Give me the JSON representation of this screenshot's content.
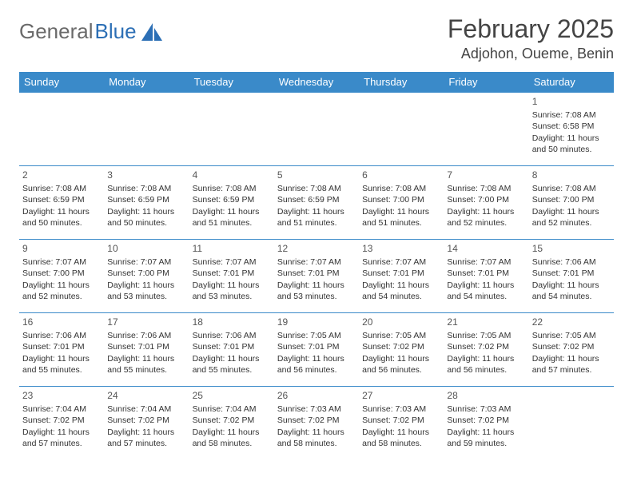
{
  "brand": {
    "name1": "General",
    "name2": "Blue"
  },
  "title": "February 2025",
  "location": "Adjohon, Oueme, Benin",
  "colors": {
    "header_bg": "#3a8ac9",
    "header_fg": "#ffffff",
    "border": "#3a8ac9",
    "brand_gray": "#6a6a6a",
    "brand_blue": "#2c6fb5",
    "text": "#333333"
  },
  "weekdays": [
    "Sunday",
    "Monday",
    "Tuesday",
    "Wednesday",
    "Thursday",
    "Friday",
    "Saturday"
  ],
  "weeks": [
    [
      null,
      null,
      null,
      null,
      null,
      null,
      {
        "d": "1",
        "sr": "7:08 AM",
        "ss": "6:58 PM",
        "dl": "11 hours and 50 minutes."
      }
    ],
    [
      {
        "d": "2",
        "sr": "7:08 AM",
        "ss": "6:59 PM",
        "dl": "11 hours and 50 minutes."
      },
      {
        "d": "3",
        "sr": "7:08 AM",
        "ss": "6:59 PM",
        "dl": "11 hours and 50 minutes."
      },
      {
        "d": "4",
        "sr": "7:08 AM",
        "ss": "6:59 PM",
        "dl": "11 hours and 51 minutes."
      },
      {
        "d": "5",
        "sr": "7:08 AM",
        "ss": "6:59 PM",
        "dl": "11 hours and 51 minutes."
      },
      {
        "d": "6",
        "sr": "7:08 AM",
        "ss": "7:00 PM",
        "dl": "11 hours and 51 minutes."
      },
      {
        "d": "7",
        "sr": "7:08 AM",
        "ss": "7:00 PM",
        "dl": "11 hours and 52 minutes."
      },
      {
        "d": "8",
        "sr": "7:08 AM",
        "ss": "7:00 PM",
        "dl": "11 hours and 52 minutes."
      }
    ],
    [
      {
        "d": "9",
        "sr": "7:07 AM",
        "ss": "7:00 PM",
        "dl": "11 hours and 52 minutes."
      },
      {
        "d": "10",
        "sr": "7:07 AM",
        "ss": "7:00 PM",
        "dl": "11 hours and 53 minutes."
      },
      {
        "d": "11",
        "sr": "7:07 AM",
        "ss": "7:01 PM",
        "dl": "11 hours and 53 minutes."
      },
      {
        "d": "12",
        "sr": "7:07 AM",
        "ss": "7:01 PM",
        "dl": "11 hours and 53 minutes."
      },
      {
        "d": "13",
        "sr": "7:07 AM",
        "ss": "7:01 PM",
        "dl": "11 hours and 54 minutes."
      },
      {
        "d": "14",
        "sr": "7:07 AM",
        "ss": "7:01 PM",
        "dl": "11 hours and 54 minutes."
      },
      {
        "d": "15",
        "sr": "7:06 AM",
        "ss": "7:01 PM",
        "dl": "11 hours and 54 minutes."
      }
    ],
    [
      {
        "d": "16",
        "sr": "7:06 AM",
        "ss": "7:01 PM",
        "dl": "11 hours and 55 minutes."
      },
      {
        "d": "17",
        "sr": "7:06 AM",
        "ss": "7:01 PM",
        "dl": "11 hours and 55 minutes."
      },
      {
        "d": "18",
        "sr": "7:06 AM",
        "ss": "7:01 PM",
        "dl": "11 hours and 55 minutes."
      },
      {
        "d": "19",
        "sr": "7:05 AM",
        "ss": "7:01 PM",
        "dl": "11 hours and 56 minutes."
      },
      {
        "d": "20",
        "sr": "7:05 AM",
        "ss": "7:02 PM",
        "dl": "11 hours and 56 minutes."
      },
      {
        "d": "21",
        "sr": "7:05 AM",
        "ss": "7:02 PM",
        "dl": "11 hours and 56 minutes."
      },
      {
        "d": "22",
        "sr": "7:05 AM",
        "ss": "7:02 PM",
        "dl": "11 hours and 57 minutes."
      }
    ],
    [
      {
        "d": "23",
        "sr": "7:04 AM",
        "ss": "7:02 PM",
        "dl": "11 hours and 57 minutes."
      },
      {
        "d": "24",
        "sr": "7:04 AM",
        "ss": "7:02 PM",
        "dl": "11 hours and 57 minutes."
      },
      {
        "d": "25",
        "sr": "7:04 AM",
        "ss": "7:02 PM",
        "dl": "11 hours and 58 minutes."
      },
      {
        "d": "26",
        "sr": "7:03 AM",
        "ss": "7:02 PM",
        "dl": "11 hours and 58 minutes."
      },
      {
        "d": "27",
        "sr": "7:03 AM",
        "ss": "7:02 PM",
        "dl": "11 hours and 58 minutes."
      },
      {
        "d": "28",
        "sr": "7:03 AM",
        "ss": "7:02 PM",
        "dl": "11 hours and 59 minutes."
      },
      null
    ]
  ],
  "labels": {
    "sunrise": "Sunrise:",
    "sunset": "Sunset:",
    "daylight": "Daylight:"
  }
}
